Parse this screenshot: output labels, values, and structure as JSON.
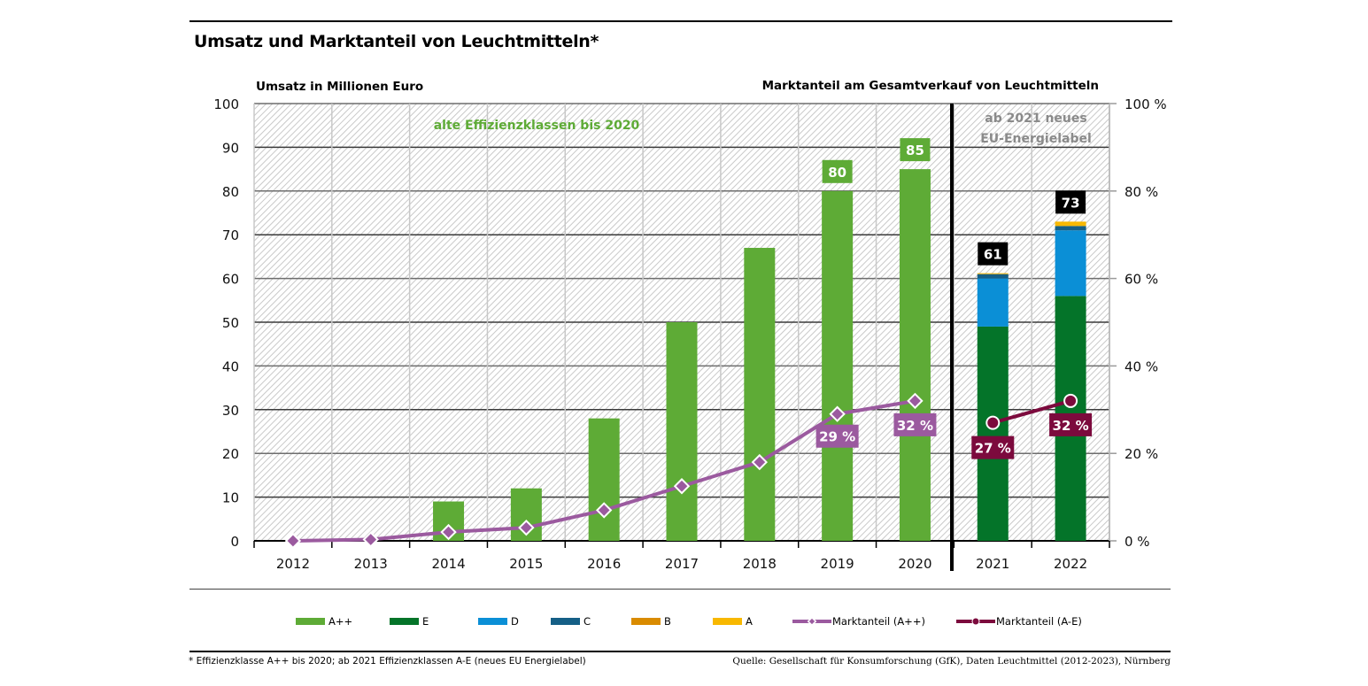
{
  "header": {
    "title": "Umsatz und Marktanteil von Leuchtmitteln*",
    "left_axis_title": "Umsatz in Millionen Euro",
    "right_axis_title": "Marktanteil am Gesamtverkauf von Leuchtmitteln"
  },
  "annotations": {
    "old_classes": "alte Effizienzklassen bis 2020",
    "new_label_line1": "ab 2021 neues",
    "new_label_line2": "EU-Energielabel"
  },
  "legend": [
    {
      "label": "A++",
      "color": "#5eab36",
      "type": "bar"
    },
    {
      "label": "E",
      "color": "#047429",
      "type": "bar"
    },
    {
      "label": "D",
      "color": "#0b8fd6",
      "type": "bar"
    },
    {
      "label": "C",
      "color": "#155f86",
      "type": "bar"
    },
    {
      "label": "B",
      "color": "#d98b00",
      "type": "bar"
    },
    {
      "label": "A",
      "color": "#f8b800",
      "type": "bar"
    },
    {
      "label": "Marktanteil (A++)",
      "color": "#9b5a9f",
      "type": "line-diamond"
    },
    {
      "label": "Marktanteil (A-E)",
      "color": "#7c0a3d",
      "type": "line-circle"
    }
  ],
  "footer": {
    "footnote": "* Effizienzklasse A++ bis 2020; ab 2021 Effizienzklassen A-E (neues EU Energielabel)",
    "source": "Quelle: Gesellschaft für Konsumforschung (GfK), Daten Leuchtmittel (2012-2023), Nürnberg"
  },
  "chart_data": {
    "type": "bar",
    "title": "Umsatz und Marktanteil von Leuchtmitteln*",
    "xlabel": "",
    "ylabel": "Umsatz in Millionen Euro",
    "y2label": "Marktanteil am Gesamtverkauf von Leuchtmitteln",
    "categories": [
      "2012",
      "2013",
      "2014",
      "2015",
      "2016",
      "2017",
      "2018",
      "2019",
      "2020",
      "2021",
      "2022"
    ],
    "ylim": [
      0,
      100
    ],
    "y2lim": [
      0,
      100
    ],
    "yticks": [
      "0",
      "10",
      "20",
      "30",
      "40",
      "50",
      "60",
      "70",
      "80",
      "90",
      "100"
    ],
    "y2ticks": [
      "0 %",
      "20 %",
      "40 %",
      "60 %",
      "80 %",
      "100 %"
    ],
    "grid": true,
    "legend_position": "bottom",
    "series": [
      {
        "name": "A++",
        "kind": "bar",
        "color": "#5eab36",
        "values": [
          0,
          0,
          9,
          12,
          28,
          50,
          67,
          80,
          85,
          null,
          null
        ]
      },
      {
        "name": "E",
        "kind": "stacked-bar",
        "color": "#047429",
        "values": [
          null,
          null,
          null,
          null,
          null,
          null,
          null,
          null,
          null,
          49,
          56
        ]
      },
      {
        "name": "D",
        "kind": "stacked-bar",
        "color": "#0b8fd6",
        "values": [
          null,
          null,
          null,
          null,
          null,
          null,
          null,
          null,
          null,
          11,
          15
        ]
      },
      {
        "name": "C",
        "kind": "stacked-bar",
        "color": "#155f86",
        "values": [
          null,
          null,
          null,
          null,
          null,
          null,
          null,
          null,
          null,
          1,
          1
        ]
      },
      {
        "name": "B",
        "kind": "stacked-bar",
        "color": "#d98b00",
        "values": [
          null,
          null,
          null,
          null,
          null,
          null,
          null,
          null,
          null,
          0,
          0
        ]
      },
      {
        "name": "A",
        "kind": "stacked-bar",
        "color": "#f8b800",
        "values": [
          null,
          null,
          null,
          null,
          null,
          null,
          null,
          null,
          null,
          0.2,
          1
        ]
      },
      {
        "name": "Marktanteil (A++)",
        "kind": "line",
        "axis": "right",
        "color": "#9b5a9f",
        "values": [
          0,
          0.3,
          2,
          3,
          7,
          12.5,
          18,
          29,
          32,
          null,
          null
        ]
      },
      {
        "name": "Marktanteil (A-E)",
        "kind": "line",
        "axis": "right",
        "color": "#7c0a3d",
        "values": [
          null,
          null,
          null,
          null,
          null,
          null,
          null,
          null,
          null,
          27,
          32
        ]
      }
    ],
    "bar_labels": [
      {
        "category": "2019",
        "text": "80",
        "style": "green"
      },
      {
        "category": "2020",
        "text": "85",
        "style": "green"
      },
      {
        "category": "2021",
        "text": "61",
        "style": "black"
      },
      {
        "category": "2022",
        "text": "73",
        "style": "black"
      }
    ],
    "line_labels": [
      {
        "category": "2019",
        "text": "29 %",
        "series": "Marktanteil (A++)"
      },
      {
        "category": "2020",
        "text": "32 %",
        "series": "Marktanteil (A++)"
      },
      {
        "category": "2021",
        "text": "27 %",
        "series": "Marktanteil (A-E)"
      },
      {
        "category": "2022",
        "text": "32 %",
        "series": "Marktanteil (A-E)"
      }
    ]
  }
}
